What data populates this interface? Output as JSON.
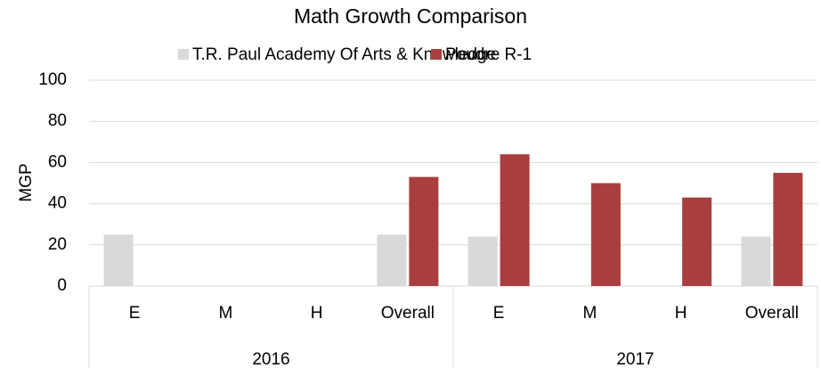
{
  "chart_data": {
    "type": "bar",
    "title": "Math Growth Comparison",
    "y_label": "MGP",
    "categories": [
      "E",
      "M",
      "H",
      "Overall",
      "E",
      "M",
      "H",
      "Overall"
    ],
    "groups": [
      "2016",
      "2017"
    ],
    "series": [
      {
        "name": "T.R. Paul Academy Of Arts & Knowledge",
        "color": "#d9d9d9",
        "values": [
          25,
          null,
          null,
          25,
          24,
          null,
          null,
          24
        ]
      },
      {
        "name": "Poudre R-1",
        "color": "#a83f3e",
        "values": [
          null,
          null,
          null,
          53,
          64,
          50,
          43,
          55
        ]
      }
    ],
    "ylim": [
      0,
      100
    ],
    "yticks": [
      0,
      20,
      40,
      60,
      80,
      100
    ],
    "grid": true,
    "legend": "top"
  }
}
